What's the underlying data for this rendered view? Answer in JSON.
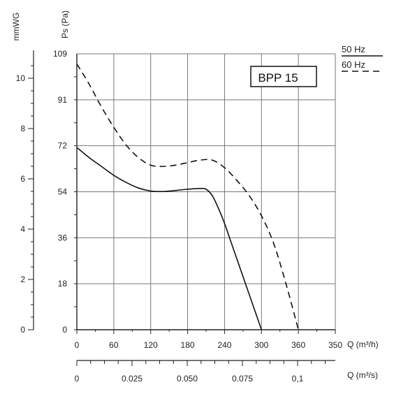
{
  "chart_data": {
    "type": "line",
    "title": "BPP 15",
    "xlabel": "Q (m³/h)",
    "xlabel2": "Q (m³/s)",
    "ylabel": "Ps (Pa)",
    "ylabel2": "mmWG",
    "xlim": [
      0,
      350
    ],
    "ylim": [
      0,
      109
    ],
    "x_ticks": [
      "0",
      "60",
      "120",
      "180",
      "240",
      "300",
      "360",
      "350"
    ],
    "y_ticks": [
      "0",
      "18",
      "36",
      "54",
      "72",
      "91",
      "109"
    ],
    "x2_ticks": [
      "0",
      "0.025",
      "0.050",
      "0.075",
      "0,1"
    ],
    "y2_ticks": [
      "0",
      "2",
      "4",
      "6",
      "8",
      "10"
    ],
    "grid": true,
    "legend": "top-right",
    "series": [
      {
        "name": "50 Hz",
        "style": "solid",
        "x": [
          0,
          20,
          40,
          60,
          80,
          100,
          120,
          140,
          160,
          180,
          200,
          210,
          220,
          230,
          240,
          250,
          260,
          270,
          280,
          290,
          300
        ],
        "y": [
          72,
          68,
          64.5,
          61,
          58.2,
          56,
          54.8,
          54.6,
          55,
          55.5,
          55.8,
          55.5,
          53,
          48,
          42,
          35,
          28,
          21,
          14,
          7,
          0
        ]
      },
      {
        "name": "60 Hz",
        "style": "dashed",
        "x": [
          0,
          20,
          40,
          60,
          80,
          100,
          120,
          140,
          160,
          180,
          200,
          220,
          240,
          260,
          280,
          300,
          320,
          340,
          360
        ],
        "y": [
          105,
          97,
          88,
          80,
          73,
          68,
          65,
          64.5,
          65,
          66,
          67,
          67,
          64,
          59,
          53,
          45,
          34,
          18,
          0
        ]
      }
    ]
  }
}
